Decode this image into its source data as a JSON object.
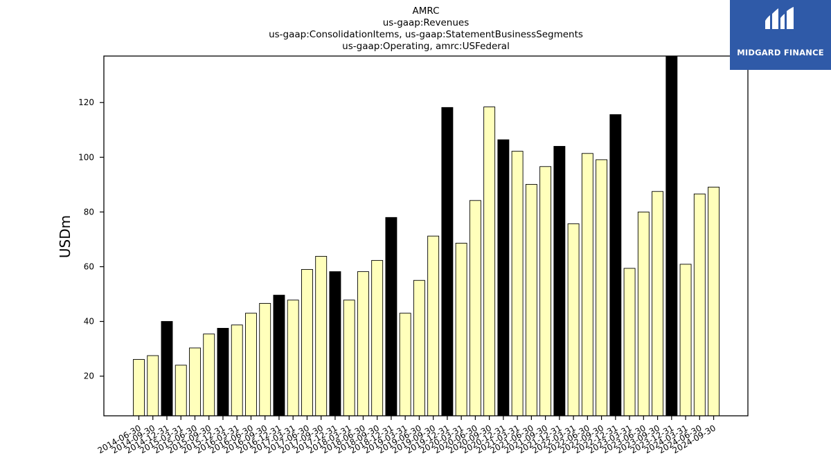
{
  "chart_data": {
    "type": "bar",
    "title_lines": [
      "AMRC",
      "us-gaap:Revenues",
      "us-gaap:ConsolidationItems, us-gaap:StatementBusinessSegments",
      "us-gaap:Operating, amrc:USFederal"
    ],
    "ylabel": "USDm",
    "xlabel": "",
    "ylim": [
      5.5,
      137
    ],
    "yticks": [
      20,
      40,
      60,
      80,
      100,
      120
    ],
    "grid": false,
    "colors": {
      "regular": "#ffffbb",
      "highlight": "#000000",
      "edge": "#000000"
    },
    "categories": [
      "2014-06-30",
      "2014-09-30",
      "2014-12-31",
      "2015-03-31",
      "2015-06-30",
      "2015-09-30",
      "2015-12-31",
      "2016-03-31",
      "2016-06-30",
      "2016-09-30",
      "2016-12-31",
      "2017-03-31",
      "2017-06-30",
      "2017-09-30",
      "2017-12-31",
      "2018-03-31",
      "2018-06-30",
      "2018-09-30",
      "2018-12-31",
      "2019-03-31",
      "2019-06-30",
      "2019-09-30",
      "2019-12-31",
      "2020-03-31",
      "2020-06-30",
      "2020-09-30",
      "2020-12-31",
      "2021-03-31",
      "2021-06-30",
      "2021-09-30",
      "2021-12-31",
      "2022-03-31",
      "2022-06-30",
      "2022-09-30",
      "2022-12-31",
      "2023-03-31",
      "2023-06-30",
      "2023-09-30",
      "2023-12-31",
      "2024-03-31",
      "2024-06-30",
      "2024-09-30"
    ],
    "values": [
      26.1,
      27.5,
      40.0,
      24.0,
      30.3,
      35.4,
      37.5,
      38.7,
      43.0,
      46.6,
      49.6,
      47.8,
      59.0,
      63.8,
      58.2,
      47.8,
      58.2,
      62.3,
      78.0,
      43.0,
      55.0,
      71.2,
      118.2,
      68.6,
      84.2,
      118.4,
      106.4,
      102.2,
      90.1,
      96.6,
      104.0,
      75.7,
      101.4,
      99.1,
      115.6,
      59.4,
      80.0,
      87.5,
      138.0,
      60.9,
      86.6,
      89.1
    ],
    "highlight": [
      false,
      false,
      true,
      false,
      false,
      false,
      true,
      false,
      false,
      false,
      true,
      false,
      false,
      false,
      true,
      false,
      false,
      false,
      true,
      false,
      false,
      false,
      true,
      false,
      false,
      false,
      true,
      false,
      false,
      false,
      true,
      false,
      false,
      false,
      true,
      false,
      false,
      false,
      true,
      false,
      false,
      false
    ]
  },
  "logo": {
    "text": "MIDGARD FINANCE",
    "icon": "midgard-logo-icon",
    "background": "#2f5aa8"
  }
}
